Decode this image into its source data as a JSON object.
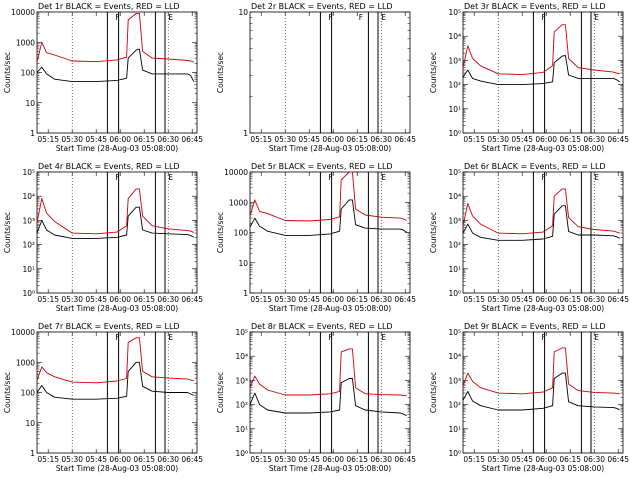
{
  "figure": {
    "xlabel": "Start Time (28-Aug-03 05:08:00)",
    "ylabel": "Counts/sec",
    "x_ticks": [
      "05:15",
      "05:30",
      "05:45",
      "06:00",
      "06:15",
      "06:30",
      "06:45"
    ],
    "colors": {
      "black_series": "#000000",
      "red_series": "#d00000",
      "frame": "#000000"
    }
  },
  "chart_data": [
    {
      "type": "line",
      "title": "Det 1r BLACK = Events, RED = LLD",
      "yscale": "log",
      "ylim": [
        1,
        10000
      ],
      "y_tick_labels": [
        "1",
        "10",
        "100",
        "1000",
        "10000"
      ],
      "markers": [
        {
          "x": "05:57",
          "label": "F"
        },
        {
          "x": "06:30",
          "label": "E"
        }
      ],
      "series": [
        {
          "name": "BLACK = Events",
          "color": "#000000",
          "x": [
            "05:08",
            "05:11",
            "05:14",
            "05:19",
            "05:30",
            "05:45",
            "05:58",
            "06:04",
            "06:05",
            "06:10",
            "06:12",
            "06:14",
            "06:20",
            "06:30",
            "06:42",
            "06:44",
            "06:46"
          ],
          "y": [
            100,
            150,
            90,
            60,
            50,
            50,
            55,
            65,
            300,
            550,
            600,
            120,
            90,
            90,
            90,
            80,
            50
          ]
        },
        {
          "name": "RED = LLD",
          "color": "#d00000",
          "x": [
            "05:08",
            "05:11",
            "05:14",
            "05:19",
            "05:30",
            "05:45",
            "05:58",
            "06:04",
            "06:05",
            "06:10",
            "06:12",
            "06:14",
            "06:20",
            "06:30",
            "06:42",
            "06:44",
            "06:46"
          ],
          "y": [
            220,
            1000,
            450,
            380,
            240,
            230,
            260,
            320,
            5500,
            9000,
            9000,
            500,
            300,
            280,
            250,
            240,
            220
          ]
        }
      ]
    },
    {
      "type": "line",
      "title": "Det 2r BLACK = Events, RED = LLD",
      "yscale": "log",
      "ylim": [
        1,
        10
      ],
      "y_tick_labels": [
        "1",
        "10"
      ],
      "markers": [
        {
          "x": "05:57",
          "label": "F"
        },
        {
          "x": "06:16",
          "label": "F"
        },
        {
          "x": "06:30",
          "label": "E"
        }
      ],
      "series": []
    },
    {
      "type": "line",
      "title": "Det 3r BLACK = Events, RED = LLD",
      "yscale": "log",
      "ylim": [
        1,
        100000
      ],
      "y_tick_labels": [
        "10⁰",
        "10¹",
        "10²",
        "10³",
        "10⁴",
        "10⁵"
      ],
      "markers": [
        {
          "x": "05:57",
          "label": "F"
        },
        {
          "x": "06:30",
          "label": "E"
        }
      ],
      "series": [
        {
          "name": "BLACK = Events",
          "color": "#000000",
          "x": [
            "05:08",
            "05:11",
            "05:14",
            "05:19",
            "05:30",
            "05:45",
            "05:58",
            "06:04",
            "06:05",
            "06:10",
            "06:12",
            "06:14",
            "06:20",
            "06:30",
            "06:42",
            "06:44",
            "06:46"
          ],
          "y": [
            200,
            400,
            180,
            140,
            100,
            100,
            110,
            130,
            800,
            1500,
            1600,
            250,
            180,
            180,
            180,
            160,
            130
          ]
        },
        {
          "name": "RED = LLD",
          "color": "#d00000",
          "x": [
            "05:08",
            "05:11",
            "05:14",
            "05:19",
            "05:30",
            "05:45",
            "05:58",
            "06:04",
            "06:05",
            "06:10",
            "06:12",
            "06:14",
            "06:20",
            "06:30",
            "06:42",
            "06:44",
            "06:46"
          ],
          "y": [
            500,
            4000,
            1200,
            600,
            280,
            260,
            320,
            600,
            15000,
            30000,
            30000,
            1200,
            500,
            400,
            330,
            300,
            280
          ]
        }
      ]
    },
    {
      "type": "line",
      "title": "Det 4r BLACK = Events, RED = LLD",
      "yscale": "log",
      "ylim": [
        1,
        100000
      ],
      "y_tick_labels": [
        "10⁰",
        "10¹",
        "10²",
        "10³",
        "10⁴",
        "10⁵"
      ],
      "markers": [
        {
          "x": "05:57",
          "label": "F"
        },
        {
          "x": "06:30",
          "label": "E"
        }
      ],
      "series": [
        {
          "name": "BLACK = Events",
          "color": "#000000",
          "x": [
            "05:08",
            "05:11",
            "05:14",
            "05:19",
            "05:30",
            "05:45",
            "05:58",
            "06:04",
            "06:05",
            "06:10",
            "06:12",
            "06:14",
            "06:20",
            "06:30",
            "06:42",
            "06:44",
            "06:46"
          ],
          "y": [
            300,
            1000,
            400,
            250,
            180,
            180,
            200,
            250,
            1500,
            3500,
            3500,
            400,
            300,
            280,
            260,
            240,
            200
          ]
        },
        {
          "name": "RED = LLD",
          "color": "#d00000",
          "x": [
            "05:08",
            "05:11",
            "05:14",
            "05:19",
            "05:30",
            "05:45",
            "05:58",
            "06:04",
            "06:05",
            "06:10",
            "06:12",
            "06:14",
            "06:20",
            "06:30",
            "06:42",
            "06:44",
            "06:46"
          ],
          "y": [
            800,
            8000,
            2000,
            900,
            300,
            280,
            330,
            600,
            8000,
            20000,
            20000,
            1500,
            600,
            450,
            380,
            360,
            320
          ]
        }
      ]
    },
    {
      "type": "line",
      "title": "Det 5r BLACK = Events, RED = LLD",
      "yscale": "log",
      "ylim": [
        1,
        10000
      ],
      "y_tick_labels": [
        "1",
        "10",
        "100",
        "1000",
        "10000"
      ],
      "markers": [
        {
          "x": "05:57",
          "label": "F"
        },
        {
          "x": "06:30",
          "label": "E"
        }
      ],
      "series": [
        {
          "name": "BLACK = Events",
          "color": "#000000",
          "x": [
            "05:08",
            "05:11",
            "05:14",
            "05:19",
            "05:30",
            "05:45",
            "05:58",
            "06:04",
            "06:05",
            "06:10",
            "06:12",
            "06:14",
            "06:20",
            "06:30",
            "06:42",
            "06:44",
            "06:46"
          ],
          "y": [
            150,
            300,
            160,
            110,
            80,
            80,
            90,
            110,
            600,
            1200,
            1200,
            180,
            140,
            130,
            130,
            120,
            100
          ]
        },
        {
          "name": "RED = LLD",
          "color": "#d00000",
          "x": [
            "05:08",
            "05:11",
            "05:14",
            "05:19",
            "05:30",
            "05:45",
            "05:58",
            "06:04",
            "06:05",
            "06:10",
            "06:12",
            "06:14",
            "06:20",
            "06:30",
            "06:42",
            "06:44",
            "06:46"
          ],
          "y": [
            350,
            1200,
            500,
            420,
            250,
            240,
            270,
            330,
            5500,
            10000,
            10000,
            600,
            380,
            320,
            300,
            280,
            250
          ]
        }
      ]
    },
    {
      "type": "line",
      "title": "Det 6r BLACK = Events, RED = LLD",
      "yscale": "log",
      "ylim": [
        1,
        100000
      ],
      "y_tick_labels": [
        "10⁰",
        "10¹",
        "10²",
        "10³",
        "10⁴",
        "10⁵"
      ],
      "markers": [
        {
          "x": "05:57",
          "label": "F"
        },
        {
          "x": "06:30",
          "label": "E"
        }
      ],
      "series": [
        {
          "name": "BLACK = Events",
          "color": "#000000",
          "x": [
            "05:08",
            "05:11",
            "05:14",
            "05:19",
            "05:30",
            "05:45",
            "05:58",
            "06:04",
            "06:05",
            "06:10",
            "06:12",
            "06:14",
            "06:20",
            "06:30",
            "06:42",
            "06:44",
            "06:46"
          ],
          "y": [
            300,
            700,
            300,
            200,
            150,
            150,
            170,
            220,
            1800,
            4000,
            4000,
            350,
            250,
            250,
            230,
            210,
            180
          ]
        },
        {
          "name": "RED = LLD",
          "color": "#d00000",
          "x": [
            "05:08",
            "05:11",
            "05:14",
            "05:19",
            "05:30",
            "05:45",
            "05:58",
            "06:04",
            "06:05",
            "06:10",
            "06:12",
            "06:14",
            "06:20",
            "06:30",
            "06:42",
            "06:44",
            "06:46"
          ],
          "y": [
            600,
            5000,
            1500,
            700,
            300,
            280,
            330,
            600,
            10000,
            20000,
            20000,
            1300,
            550,
            420,
            360,
            330,
            300
          ]
        }
      ]
    },
    {
      "type": "line",
      "title": "Det 7r BLACK = Events, RED = LLD",
      "yscale": "log",
      "ylim": [
        1,
        10000
      ],
      "y_tick_labels": [
        "1",
        "10",
        "100",
        "1000",
        "10000"
      ],
      "markers": [
        {
          "x": "05:57",
          "label": "F"
        },
        {
          "x": "06:30",
          "label": "E"
        }
      ],
      "series": [
        {
          "name": "BLACK = Events",
          "color": "#000000",
          "x": [
            "05:08",
            "05:11",
            "05:14",
            "05:19",
            "05:30",
            "05:45",
            "05:58",
            "06:04",
            "06:05",
            "06:10",
            "06:12",
            "06:14",
            "06:20",
            "06:30",
            "06:42",
            "06:44",
            "06:46"
          ],
          "y": [
            100,
            170,
            100,
            70,
            60,
            60,
            65,
            75,
            500,
            1000,
            1000,
            160,
            110,
            100,
            100,
            90,
            80
          ]
        },
        {
          "name": "RED = LLD",
          "color": "#d00000",
          "x": [
            "05:08",
            "05:11",
            "05:14",
            "05:19",
            "05:30",
            "05:45",
            "05:58",
            "06:04",
            "06:05",
            "06:10",
            "06:12",
            "06:14",
            "06:20",
            "06:30",
            "06:42",
            "06:44",
            "06:46"
          ],
          "y": [
            250,
            700,
            450,
            330,
            220,
            210,
            240,
            290,
            4500,
            6500,
            6500,
            500,
            330,
            300,
            280,
            260,
            240
          ]
        }
      ]
    },
    {
      "type": "line",
      "title": "Det 8r BLACK = Events, RED = LLD",
      "yscale": "log",
      "ylim": [
        1,
        100000
      ],
      "y_tick_labels": [
        "10⁰",
        "10¹",
        "10²",
        "10³",
        "10⁴",
        "10⁵"
      ],
      "markers": [
        {
          "x": "05:57",
          "label": "F"
        },
        {
          "x": "06:30",
          "label": "E"
        }
      ],
      "series": [
        {
          "name": "BLACK = Events",
          "color": "#000000",
          "x": [
            "05:08",
            "05:11",
            "05:14",
            "05:19",
            "05:30",
            "05:45",
            "05:58",
            "06:04",
            "06:05",
            "06:10",
            "06:12",
            "06:14",
            "06:20",
            "06:30",
            "06:42",
            "06:44",
            "06:46"
          ],
          "y": [
            100,
            300,
            100,
            60,
            45,
            45,
            50,
            60,
            800,
            1200,
            1200,
            90,
            60,
            50,
            45,
            40,
            35
          ]
        },
        {
          "name": "RED = LLD",
          "color": "#d00000",
          "x": [
            "05:08",
            "05:11",
            "05:14",
            "05:19",
            "05:30",
            "05:45",
            "05:58",
            "06:04",
            "06:05",
            "06:10",
            "06:12",
            "06:14",
            "06:20",
            "06:30",
            "06:42",
            "06:44",
            "06:46"
          ],
          "y": [
            500,
            1500,
            700,
            400,
            250,
            250,
            280,
            350,
            15000,
            20000,
            20000,
            500,
            280,
            260,
            250,
            240,
            230
          ]
        }
      ]
    },
    {
      "type": "line",
      "title": "Det 9r BLACK = Events, RED = LLD",
      "yscale": "log",
      "ylim": [
        1,
        100000
      ],
      "y_tick_labels": [
        "10⁰",
        "10¹",
        "10²",
        "10³",
        "10⁴",
        "10⁵"
      ],
      "markers": [
        {
          "x": "05:57",
          "label": "F"
        },
        {
          "x": "06:30",
          "label": "E"
        }
      ],
      "series": [
        {
          "name": "BLACK = Events",
          "color": "#000000",
          "x": [
            "05:08",
            "05:11",
            "05:14",
            "05:19",
            "05:30",
            "05:45",
            "05:58",
            "06:04",
            "06:05",
            "06:10",
            "06:12",
            "06:14",
            "06:20",
            "06:30",
            "06:42",
            "06:44",
            "06:46"
          ],
          "y": [
            150,
            350,
            140,
            90,
            60,
            60,
            70,
            90,
            1200,
            2000,
            2000,
            130,
            90,
            80,
            75,
            70,
            60
          ]
        },
        {
          "name": "RED = LLD",
          "color": "#d00000",
          "x": [
            "05:08",
            "05:11",
            "05:14",
            "05:19",
            "05:30",
            "05:45",
            "05:58",
            "06:04",
            "06:05",
            "06:10",
            "06:12",
            "06:14",
            "06:20",
            "06:30",
            "06:42",
            "06:44",
            "06:46"
          ],
          "y": [
            600,
            2000,
            900,
            500,
            300,
            280,
            330,
            500,
            15000,
            22000,
            22000,
            700,
            380,
            320,
            300,
            290,
            280
          ]
        }
      ]
    }
  ]
}
